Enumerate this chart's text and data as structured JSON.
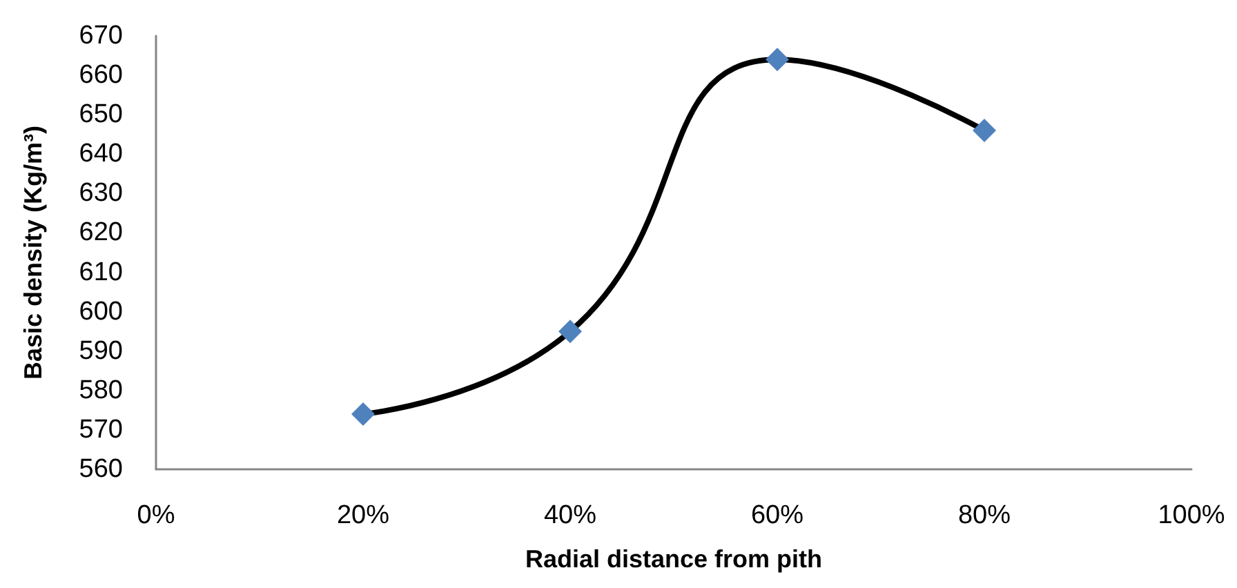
{
  "chart_data": {
    "type": "line",
    "xlabel": "Radial distance from pith",
    "ylabel": "Basic density (Kg/m³)",
    "x": [
      20,
      40,
      60,
      80
    ],
    "series": [
      {
        "color": "#4f81bd",
        "values": [
          574,
          595,
          664,
          646
        ]
      }
    ],
    "xlim": [
      0,
      100
    ],
    "xticks": [
      {
        "value": 0,
        "label": "0%"
      },
      {
        "value": 20,
        "label": "20%"
      },
      {
        "value": 40,
        "label": "40%"
      },
      {
        "value": 60,
        "label": "60%"
      },
      {
        "value": 80,
        "label": "80%"
      },
      {
        "value": 100,
        "label": "100%"
      }
    ],
    "ylim": [
      560,
      670
    ],
    "yticks": [
      560,
      570,
      580,
      590,
      600,
      610,
      620,
      630,
      640,
      650,
      660,
      670
    ],
    "grid": false,
    "marker": "diamond",
    "line_style": "solid"
  }
}
